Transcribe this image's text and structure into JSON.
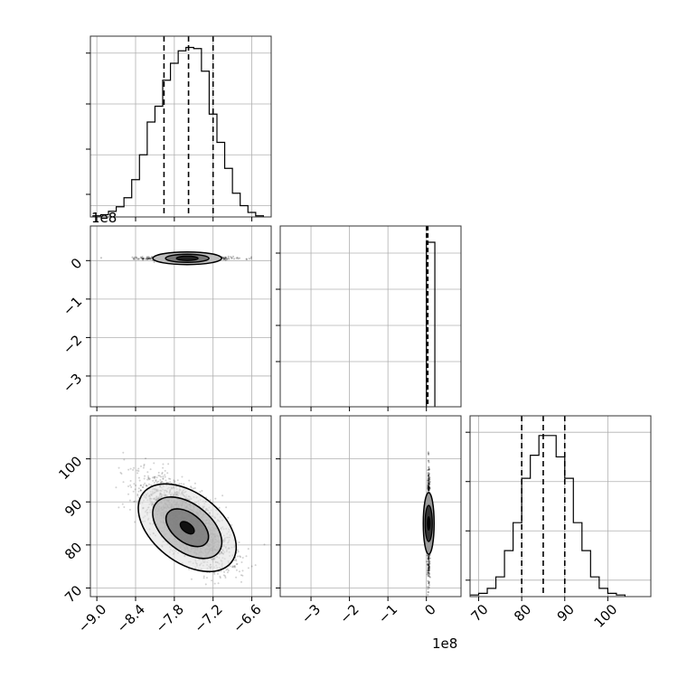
{
  "chart_data": [
    {
      "type": "histogram",
      "panel": "hist-param1",
      "title": "",
      "xlabel": "",
      "ylabel": "",
      "xlim": [
        -9.1,
        -6.3
      ],
      "x_ticks": [
        "−9.0",
        "−8.4",
        "−7.8",
        "−7.2",
        "−6.6"
      ],
      "x_tick_values": [
        -9.0,
        -8.4,
        -7.8,
        -7.2,
        -6.6
      ],
      "quantiles": [
        -7.96,
        -7.58,
        -7.2
      ],
      "bin_edges": [
        -9.06,
        -8.94,
        -8.82,
        -8.7,
        -8.58,
        -8.46,
        -8.34,
        -8.22,
        -8.1,
        -7.98,
        -7.86,
        -7.74,
        -7.62,
        -7.5,
        -7.38,
        -7.26,
        -7.14,
        -7.02,
        -6.9,
        -6.78,
        -6.66,
        -6.54,
        -6.42
      ],
      "counts": [
        0.01,
        0.02,
        0.05,
        0.09,
        0.17,
        0.33,
        0.55,
        0.84,
        0.98,
        1.21,
        1.36,
        1.47,
        1.5,
        1.49,
        1.29,
        0.91,
        0.66,
        0.43,
        0.21,
        0.1,
        0.04,
        0.01
      ],
      "ylim": [
        0,
        1.6
      ]
    },
    {
      "type": "scatter-contour",
      "panel": "param2-vs-param1",
      "xlim": [
        -9.1,
        -6.3
      ],
      "ylim": [
        -3.8,
        0.9
      ],
      "y_ticks": [
        "0",
        "−1",
        "−2",
        "−3"
      ],
      "y_tick_values": [
        0,
        -1,
        -2,
        -3
      ],
      "y_offset_label": "1e8",
      "x_center": -7.6,
      "x_spread": 0.33,
      "y_center": 0.06,
      "y_spread": 0.06
    },
    {
      "type": "histogram",
      "panel": "hist-param2",
      "xlim": [
        -3.8,
        0.9
      ],
      "quantiles": [
        0.0,
        0.02,
        0.04
      ],
      "bin_edges": [
        -0.02,
        0.0,
        0.22
      ],
      "counts": [
        0.0,
        1.0
      ],
      "ylim": [
        0,
        1.0
      ]
    },
    {
      "type": "scatter-contour",
      "panel": "param3-vs-param1",
      "xlim": [
        -9.1,
        -6.3
      ],
      "ylim": [
        68,
        110
      ],
      "y_ticks": [
        "70",
        "80",
        "90",
        "100"
      ],
      "y_tick_values": [
        70,
        80,
        90,
        100
      ],
      "x_center": -7.6,
      "x_spread": 0.33,
      "y_center": 85,
      "y_spread": 5,
      "correlation": -0.7
    },
    {
      "type": "scatter-contour",
      "panel": "param3-vs-param2",
      "xlim": [
        -3.8,
        0.9
      ],
      "ylim": [
        68,
        110
      ],
      "x_ticks": [
        "−3",
        "−2",
        "−1",
        "0"
      ],
      "x_tick_values": [
        -3,
        -2,
        -1,
        0
      ],
      "x_offset_label": "1e8",
      "x_center": 0.06,
      "x_spread": 0.06,
      "y_center": 85,
      "y_spread": 5
    },
    {
      "type": "histogram",
      "panel": "hist-param3",
      "xlim": [
        68,
        110
      ],
      "x_ticks": [
        "70",
        "80",
        "90",
        "100"
      ],
      "x_tick_values": [
        70,
        80,
        90,
        100
      ],
      "quantiles": [
        80,
        85,
        90
      ],
      "bin_edges": [
        68,
        70,
        72,
        74,
        76,
        78,
        80,
        82,
        84,
        86,
        88,
        90,
        92,
        94,
        96,
        98,
        100,
        102,
        104
      ],
      "counts": [
        0.01,
        0.02,
        0.05,
        0.12,
        0.28,
        0.45,
        0.72,
        0.86,
        0.98,
        0.98,
        0.85,
        0.72,
        0.45,
        0.28,
        0.12,
        0.05,
        0.02,
        0.01
      ],
      "ylim": [
        0,
        1.1
      ]
    }
  ]
}
